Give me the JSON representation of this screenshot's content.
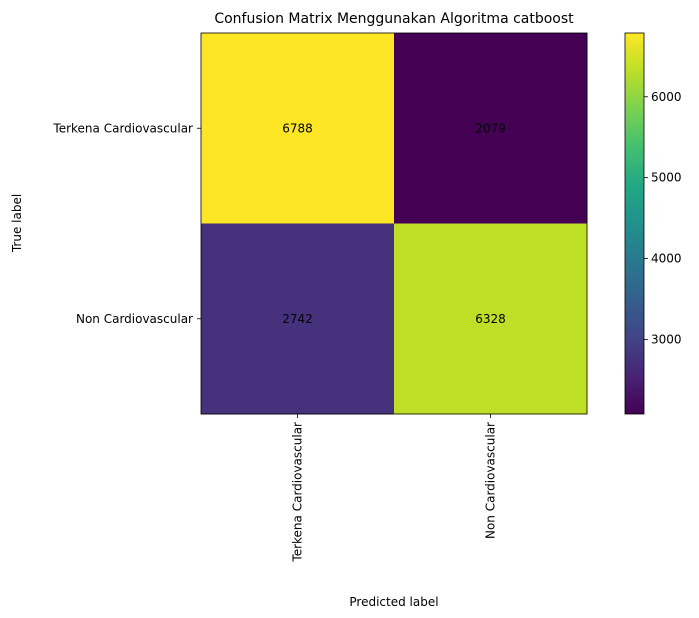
{
  "chart_data": {
    "type": "heatmap",
    "title": "Confusion Matrix Menggunakan Algoritma catboost",
    "xlabel": "Predicted label",
    "ylabel": "True label",
    "x_categories": [
      "Terkena Cardiovascular",
      "Non Cardiovascular"
    ],
    "y_categories": [
      "Terkena Cardiovascular",
      "Non Cardiovascular"
    ],
    "values": [
      [
        6788,
        2079
      ],
      [
        2742,
        6328
      ]
    ],
    "colormap": "viridis",
    "colorbar": {
      "range": [
        2079,
        6788
      ],
      "ticks": [
        3000,
        4000,
        5000,
        6000
      ],
      "tick_labels": [
        "3000",
        "4000",
        "5000",
        "6000"
      ]
    },
    "text_colors": {
      "dark_cell": "#fde725",
      "light_cell": "#440154"
    }
  }
}
